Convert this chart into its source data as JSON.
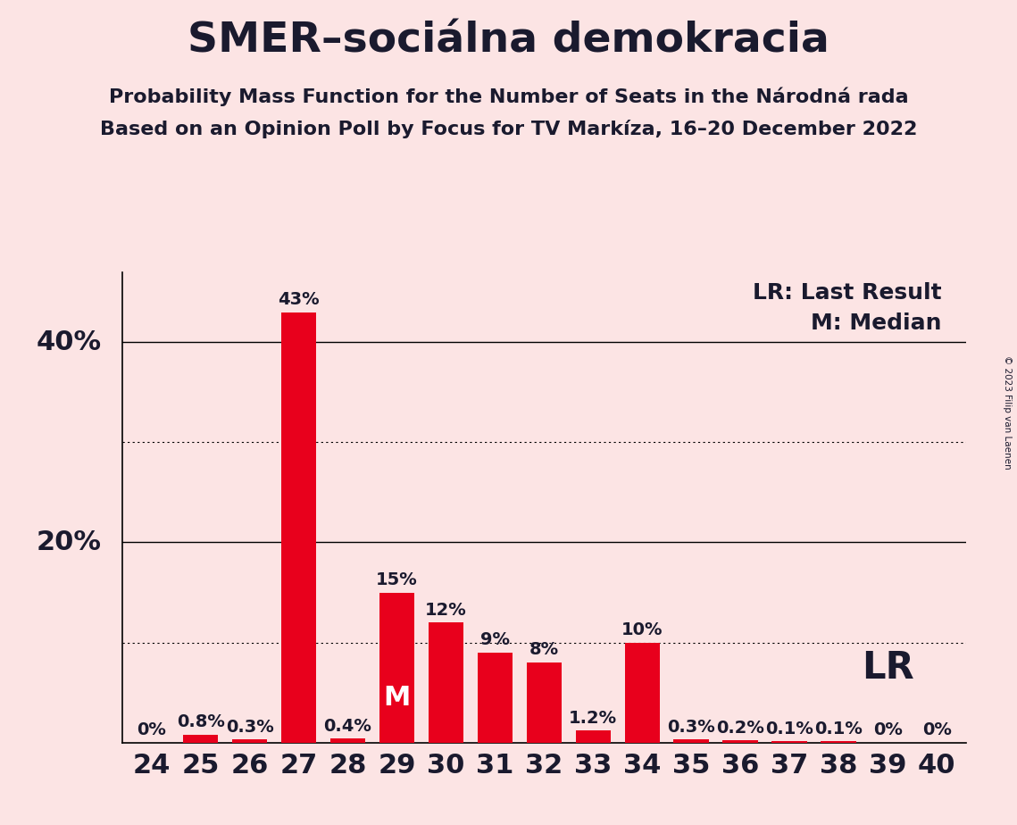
{
  "title": "SMER–sociálna demokracia",
  "subtitle1": "Probability Mass Function for the Number of Seats in the Národná rada",
  "subtitle2": "Based on an Opinion Poll by Focus for TV Markíza, 16–20 December 2022",
  "copyright": "© 2023 Filip van Laenen",
  "categories": [
    24,
    25,
    26,
    27,
    28,
    29,
    30,
    31,
    32,
    33,
    34,
    35,
    36,
    37,
    38,
    39,
    40
  ],
  "values": [
    0.0,
    0.8,
    0.3,
    43.0,
    0.4,
    15.0,
    12.0,
    9.0,
    8.0,
    1.2,
    10.0,
    0.3,
    0.2,
    0.1,
    0.1,
    0.0,
    0.0
  ],
  "labels": [
    "0%",
    "0.8%",
    "0.3%",
    "43%",
    "0.4%",
    "15%",
    "12%",
    "9%",
    "8%",
    "1.2%",
    "10%",
    "0.3%",
    "0.2%",
    "0.1%",
    "0.1%",
    "0%",
    "0%"
  ],
  "bar_color": "#e8001c",
  "background_color": "#fce4e4",
  "text_color": "#1a1a2e",
  "ylim": [
    0,
    47
  ],
  "median_seat": 29,
  "lr_seat": 38,
  "legend_lr": "LR: Last Result",
  "legend_m": "M: Median",
  "lr_label": "LR",
  "m_label": "M",
  "dotted_lines": [
    10,
    30
  ],
  "solid_lines": [
    20,
    40
  ],
  "title_fontsize": 34,
  "subtitle_fontsize": 16,
  "axis_tick_fontsize": 22,
  "bar_label_fontsize": 14,
  "legend_fontsize": 18,
  "ylabel_40": "40%",
  "ylabel_20": "20%"
}
